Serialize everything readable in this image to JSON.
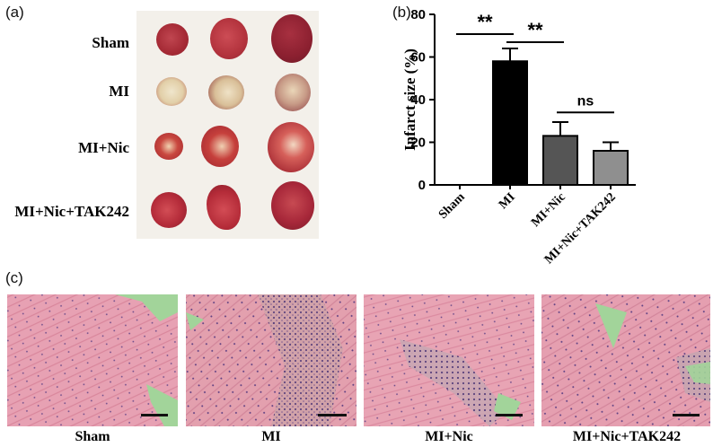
{
  "panels": {
    "a": {
      "label": "(a)",
      "rows": [
        "Sham",
        "MI",
        "MI+Nic",
        "MI+Nic+TAK242"
      ]
    },
    "b": {
      "label": "(b)"
    },
    "c": {
      "label": "(c)",
      "images": [
        "Sham",
        "MI",
        "MI+Nic",
        "MI+Nic+TAK242"
      ]
    }
  },
  "chart_data": {
    "type": "bar",
    "categories": [
      "Sham",
      "MI",
      "MI+Nic",
      "MI+Nic+TAK242"
    ],
    "values": [
      0,
      58,
      23,
      16
    ],
    "errors": [
      0,
      6,
      6.5,
      4
    ],
    "bar_colors": [
      "#000000",
      "#000000",
      "#555555",
      "#8f8f8f"
    ],
    "ylabel": "Infarct size (%)",
    "ylim": [
      0,
      80
    ],
    "yticks": [
      0,
      20,
      40,
      60,
      80
    ],
    "significance": [
      {
        "from": 0,
        "to": 1,
        "label": "**"
      },
      {
        "from": 1,
        "to": 2,
        "label": "**"
      },
      {
        "from": 2,
        "to": 3,
        "label": "ns"
      }
    ]
  },
  "colors": {
    "tissue_pink": "#e6a2b2",
    "tissue_dark": "#c76a86",
    "fibrous_green": "#9fd59a",
    "heart_red": "#b8323e",
    "heart_pale": "#e9d8c0"
  }
}
